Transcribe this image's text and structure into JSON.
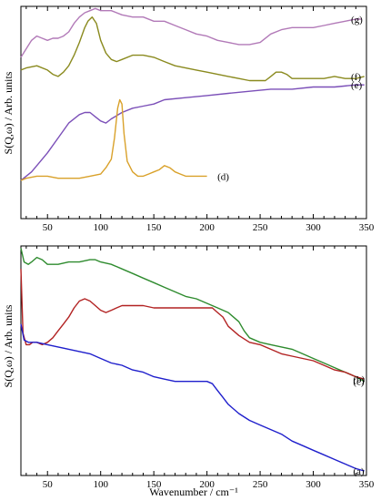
{
  "chart_data": [
    {
      "type": "line",
      "panel": "top",
      "xlabel": "",
      "ylabel": "S(Q,ω) / Arb. units",
      "xlim": [
        25,
        350
      ],
      "ylim": [
        0,
        1
      ],
      "x_ticks": [
        50,
        100,
        150,
        200,
        250,
        300,
        350
      ],
      "x_tick_labels": [
        "50",
        "100",
        "150",
        "200",
        "250",
        "300",
        "350"
      ],
      "series": [
        {
          "label": "(g)",
          "color": "#B27AB8",
          "x": [
            25,
            30,
            35,
            40,
            45,
            50,
            55,
            60,
            65,
            70,
            75,
            80,
            85,
            90,
            95,
            100,
            110,
            120,
            130,
            140,
            150,
            160,
            170,
            180,
            190,
            200,
            210,
            220,
            230,
            240,
            250,
            260,
            270,
            280,
            290,
            300,
            310,
            320,
            330,
            340,
            345
          ],
          "y": [
            0.76,
            0.8,
            0.84,
            0.86,
            0.85,
            0.84,
            0.85,
            0.85,
            0.86,
            0.88,
            0.92,
            0.95,
            0.97,
            0.98,
            0.99,
            0.98,
            0.98,
            0.96,
            0.95,
            0.95,
            0.93,
            0.93,
            0.91,
            0.89,
            0.87,
            0.86,
            0.84,
            0.83,
            0.82,
            0.82,
            0.83,
            0.87,
            0.89,
            0.9,
            0.9,
            0.9,
            0.91,
            0.92,
            0.93,
            0.94,
            0.94
          ]
        },
        {
          "label": "(f)",
          "color": "#8A8A1E",
          "x": [
            25,
            30,
            40,
            50,
            55,
            60,
            65,
            70,
            75,
            80,
            85,
            88,
            92,
            96,
            100,
            105,
            110,
            115,
            120,
            130,
            140,
            150,
            160,
            170,
            180,
            190,
            200,
            210,
            220,
            230,
            240,
            250,
            255,
            260,
            265,
            270,
            275,
            280,
            290,
            300,
            310,
            320,
            330,
            340,
            348
          ],
          "y": [
            0.7,
            0.71,
            0.72,
            0.7,
            0.68,
            0.67,
            0.69,
            0.72,
            0.77,
            0.83,
            0.9,
            0.93,
            0.95,
            0.92,
            0.84,
            0.78,
            0.75,
            0.74,
            0.75,
            0.77,
            0.77,
            0.76,
            0.74,
            0.72,
            0.71,
            0.7,
            0.69,
            0.68,
            0.67,
            0.66,
            0.65,
            0.65,
            0.65,
            0.67,
            0.69,
            0.69,
            0.68,
            0.66,
            0.66,
            0.66,
            0.66,
            0.67,
            0.66,
            0.66,
            0.67
          ]
        },
        {
          "label": "(e)",
          "color": "#7B4FB8",
          "x": [
            25,
            30,
            35,
            40,
            50,
            60,
            70,
            80,
            85,
            90,
            95,
            100,
            105,
            110,
            120,
            130,
            140,
            150,
            160,
            180,
            200,
            220,
            240,
            260,
            280,
            300,
            320,
            340,
            348
          ],
          "y": [
            0.18,
            0.2,
            0.22,
            0.25,
            0.31,
            0.38,
            0.45,
            0.49,
            0.5,
            0.5,
            0.48,
            0.46,
            0.45,
            0.47,
            0.5,
            0.52,
            0.53,
            0.54,
            0.56,
            0.57,
            0.58,
            0.59,
            0.6,
            0.61,
            0.61,
            0.62,
            0.62,
            0.63,
            0.63
          ]
        },
        {
          "label": "(d)",
          "color": "#D9A12A",
          "x": [
            25,
            30,
            40,
            50,
            60,
            70,
            80,
            90,
            100,
            105,
            110,
            113,
            116,
            118,
            120,
            122,
            125,
            130,
            135,
            140,
            145,
            150,
            155,
            160,
            165,
            170,
            175,
            180,
            190,
            200
          ],
          "y": [
            0.18,
            0.19,
            0.2,
            0.2,
            0.19,
            0.19,
            0.19,
            0.2,
            0.21,
            0.24,
            0.28,
            0.38,
            0.52,
            0.56,
            0.54,
            0.4,
            0.27,
            0.22,
            0.2,
            0.2,
            0.21,
            0.22,
            0.23,
            0.25,
            0.24,
            0.22,
            0.21,
            0.2,
            0.2,
            0.2
          ]
        }
      ]
    },
    {
      "type": "line",
      "panel": "bottom",
      "xlabel": "Wavenumber / cm⁻¹",
      "ylabel": "S(Q,ω) / Arb. units",
      "xlim": [
        25,
        350
      ],
      "ylim": [
        0,
        1
      ],
      "x_ticks": [
        50,
        100,
        150,
        200,
        250,
        300,
        350
      ],
      "x_tick_labels": [
        "50",
        "100",
        "150",
        "200",
        "250",
        "300",
        "350"
      ],
      "series": [
        {
          "label": "(c)",
          "color": "#2E8B2E",
          "x": [
            25,
            28,
            32,
            35,
            40,
            45,
            50,
            60,
            70,
            80,
            90,
            95,
            100,
            110,
            120,
            130,
            140,
            150,
            160,
            170,
            180,
            190,
            200,
            210,
            220,
            230,
            235,
            240,
            250,
            260,
            270,
            280,
            290,
            300,
            310,
            320,
            330,
            340,
            348
          ],
          "y": [
            0.99,
            0.93,
            0.92,
            0.93,
            0.95,
            0.94,
            0.92,
            0.92,
            0.93,
            0.93,
            0.94,
            0.94,
            0.93,
            0.92,
            0.9,
            0.88,
            0.86,
            0.84,
            0.82,
            0.8,
            0.78,
            0.77,
            0.75,
            0.73,
            0.71,
            0.67,
            0.63,
            0.6,
            0.58,
            0.57,
            0.56,
            0.55,
            0.53,
            0.51,
            0.49,
            0.47,
            0.45,
            0.43,
            0.41
          ]
        },
        {
          "label": "(b)",
          "color": "#B22222",
          "x": [
            25,
            27,
            30,
            33,
            36,
            40,
            45,
            50,
            55,
            60,
            65,
            70,
            75,
            80,
            85,
            90,
            95,
            100,
            105,
            110,
            115,
            120,
            130,
            140,
            150,
            160,
            170,
            180,
            190,
            200,
            205,
            210,
            215,
            220,
            230,
            240,
            250,
            260,
            270,
            280,
            290,
            300,
            310,
            320,
            330,
            340,
            348
          ],
          "y": [
            0.9,
            0.62,
            0.57,
            0.57,
            0.58,
            0.58,
            0.57,
            0.58,
            0.6,
            0.63,
            0.66,
            0.69,
            0.73,
            0.76,
            0.77,
            0.76,
            0.74,
            0.72,
            0.71,
            0.72,
            0.73,
            0.74,
            0.74,
            0.74,
            0.73,
            0.73,
            0.73,
            0.73,
            0.73,
            0.73,
            0.73,
            0.71,
            0.69,
            0.65,
            0.61,
            0.58,
            0.57,
            0.55,
            0.53,
            0.52,
            0.51,
            0.5,
            0.48,
            0.46,
            0.45,
            0.43,
            0.42
          ]
        },
        {
          "label": "(a)",
          "color": "#1F1FCC",
          "x": [
            25,
            28,
            32,
            36,
            40,
            50,
            60,
            70,
            80,
            90,
            100,
            110,
            120,
            130,
            140,
            150,
            160,
            170,
            180,
            190,
            200,
            205,
            210,
            215,
            220,
            230,
            240,
            250,
            260,
            270,
            280,
            290,
            300,
            310,
            320,
            330,
            340,
            348
          ],
          "y": [
            0.66,
            0.59,
            0.58,
            0.58,
            0.58,
            0.57,
            0.56,
            0.55,
            0.54,
            0.53,
            0.51,
            0.49,
            0.48,
            0.46,
            0.45,
            0.43,
            0.42,
            0.41,
            0.41,
            0.41,
            0.41,
            0.4,
            0.37,
            0.34,
            0.31,
            0.27,
            0.24,
            0.22,
            0.2,
            0.18,
            0.15,
            0.13,
            0.11,
            0.09,
            0.07,
            0.05,
            0.03,
            0.02
          ]
        }
      ]
    }
  ]
}
